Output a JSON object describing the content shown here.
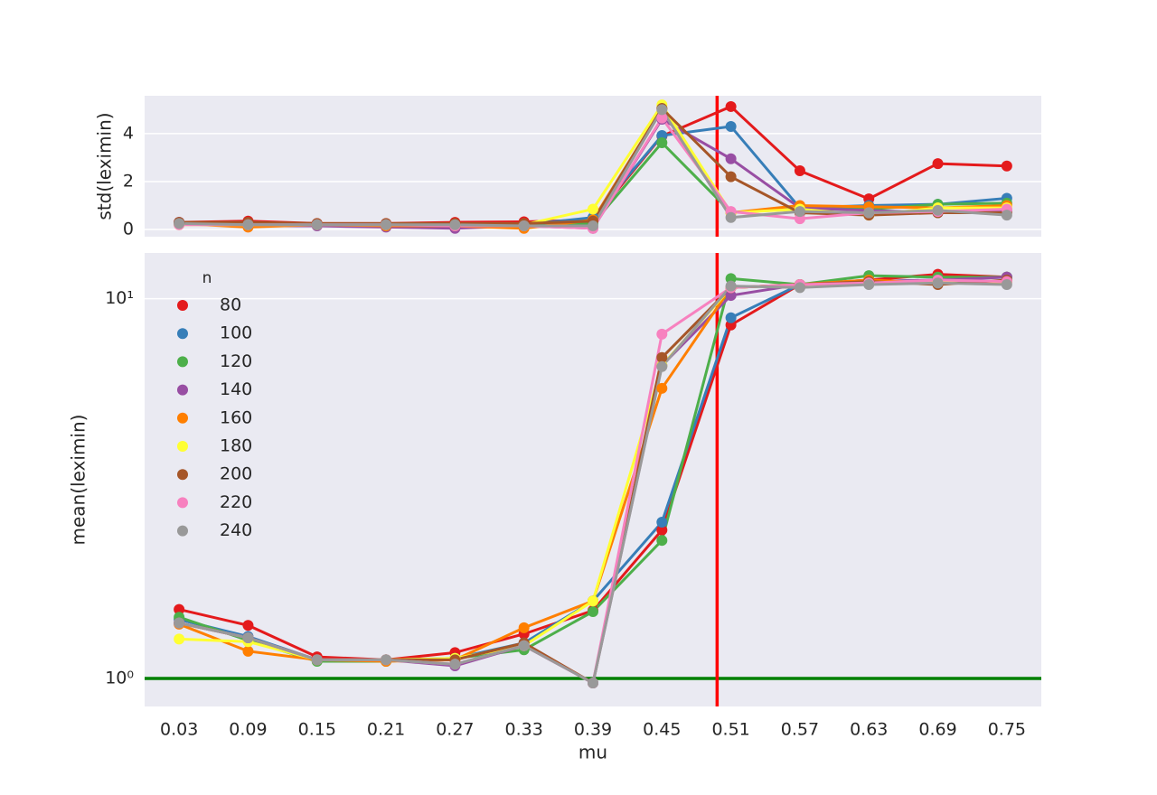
{
  "chart_data": [
    {
      "type": "line",
      "ylabel": "std(leximin)",
      "ylim": [
        -0.3,
        5.58
      ],
      "yticks": [
        0,
        2,
        4
      ],
      "grid": "y",
      "vline": {
        "x": 7.8,
        "color": "#ff0000"
      },
      "series": [
        {
          "color": "#e41a1c",
          "values": [
            0.3,
            0.35,
            0.25,
            0.25,
            0.3,
            0.32,
            0.4,
            3.9,
            5.13,
            2.45,
            1.28,
            2.75,
            2.65
          ]
        },
        {
          "color": "#377eb8",
          "values": [
            0.28,
            0.2,
            0.2,
            0.15,
            0.15,
            0.2,
            0.5,
            3.92,
            4.3,
            0.9,
            1.0,
            1.05,
            1.3
          ]
        },
        {
          "color": "#4daf4a",
          "values": [
            0.25,
            0.2,
            0.2,
            0.2,
            0.2,
            0.2,
            0.25,
            3.62,
            0.72,
            0.85,
            0.85,
            1.05,
            1.1
          ]
        },
        {
          "color": "#984ea3",
          "values": [
            0.3,
            0.15,
            0.15,
            0.1,
            0.05,
            0.15,
            0.05,
            4.6,
            2.95,
            0.9,
            0.8,
            0.7,
            0.8
          ]
        },
        {
          "color": "#ff7f00",
          "values": [
            0.25,
            0.1,
            0.2,
            0.15,
            0.15,
            0.05,
            0.4,
            5.05,
            0.7,
            1.0,
            0.95,
            0.9,
            1.0
          ]
        },
        {
          "color": "#ffff33",
          "values": [
            0.2,
            0.2,
            0.2,
            0.2,
            0.2,
            0.2,
            0.85,
            5.2,
            0.7,
            0.85,
            0.6,
            0.9,
            0.9
          ]
        },
        {
          "color": "#a65628",
          "values": [
            0.3,
            0.3,
            0.25,
            0.25,
            0.25,
            0.25,
            0.35,
            5.05,
            2.2,
            0.7,
            0.6,
            0.7,
            0.7
          ]
        },
        {
          "color": "#f781bf",
          "values": [
            0.2,
            0.2,
            0.2,
            0.2,
            0.15,
            0.15,
            0.05,
            4.65,
            0.75,
            0.45,
            0.7,
            0.75,
            0.85
          ]
        },
        {
          "color": "#999999",
          "values": [
            0.25,
            0.2,
            0.2,
            0.2,
            0.2,
            0.15,
            0.15,
            5.0,
            0.5,
            0.75,
            0.7,
            0.8,
            0.6
          ]
        }
      ]
    },
    {
      "type": "line",
      "xlabel": "mu",
      "ylabel": "mean(leximin)",
      "log_y": true,
      "ylim": [
        0.844,
        13.2
      ],
      "yticks": [
        {
          "value": 1,
          "label": "10⁰"
        },
        {
          "value": 10,
          "label": "10¹"
        }
      ],
      "grid": "y",
      "categories": [
        "0.03",
        "0.09",
        "0.15",
        "0.21",
        "0.27",
        "0.33",
        "0.39",
        "0.45",
        "0.51",
        "0.57",
        "0.63",
        "0.69",
        "0.75"
      ],
      "vline": {
        "x": 7.8,
        "color": "#ff0000"
      },
      "hline": {
        "y": 1,
        "color": "#008000"
      },
      "legend_title": "n",
      "legend": "upper left",
      "series": [
        {
          "name": "80",
          "color": "#e41a1c",
          "values": [
            1.52,
            1.38,
            1.14,
            1.12,
            1.17,
            1.31,
            1.51,
            2.46,
            8.53,
            10.9,
            11.2,
            11.6,
            11.4
          ]
        },
        {
          "name": "100",
          "color": "#377eb8",
          "values": [
            1.43,
            1.29,
            1.12,
            1.12,
            1.13,
            1.24,
            1.6,
            2.58,
            8.91,
            10.9,
            11.1,
            11.2,
            11.4
          ]
        },
        {
          "name": "120",
          "color": "#4daf4a",
          "values": [
            1.45,
            1.26,
            1.11,
            1.11,
            1.13,
            1.19,
            1.5,
            2.31,
            11.3,
            10.9,
            11.5,
            11.4,
            11.4
          ]
        },
        {
          "name": "140",
          "color": "#984ea3",
          "values": [
            1.4,
            1.28,
            1.12,
            1.12,
            1.08,
            1.22,
            0.973,
            6.67,
            10.2,
            10.9,
            11.1,
            11.2,
            11.4
          ]
        },
        {
          "name": "160",
          "color": "#ff7f00",
          "values": [
            1.39,
            1.18,
            1.12,
            1.11,
            1.12,
            1.36,
            1.6,
            5.81,
            10.7,
            10.9,
            11.2,
            11.0,
            11.1
          ]
        },
        {
          "name": "180",
          "color": "#ffff33",
          "values": [
            1.27,
            1.25,
            1.12,
            1.12,
            1.13,
            1.22,
            1.6,
            6.67,
            10.7,
            10.9,
            11.0,
            11.1,
            11.1
          ]
        },
        {
          "name": "200",
          "color": "#a65628",
          "values": [
            1.4,
            1.28,
            1.12,
            1.12,
            1.12,
            1.24,
            0.973,
            7.0,
            10.7,
            10.9,
            11.1,
            10.9,
            11.2
          ]
        },
        {
          "name": "220",
          "color": "#f781bf",
          "values": [
            1.4,
            1.28,
            1.12,
            1.12,
            1.09,
            1.22,
            0.973,
            8.07,
            10.7,
            10.9,
            11.0,
            11.2,
            11.1
          ]
        },
        {
          "name": "240",
          "color": "#999999",
          "values": [
            1.4,
            1.28,
            1.12,
            1.12,
            1.09,
            1.22,
            0.973,
            6.63,
            10.8,
            10.7,
            10.9,
            11.0,
            10.9
          ]
        }
      ]
    }
  ]
}
